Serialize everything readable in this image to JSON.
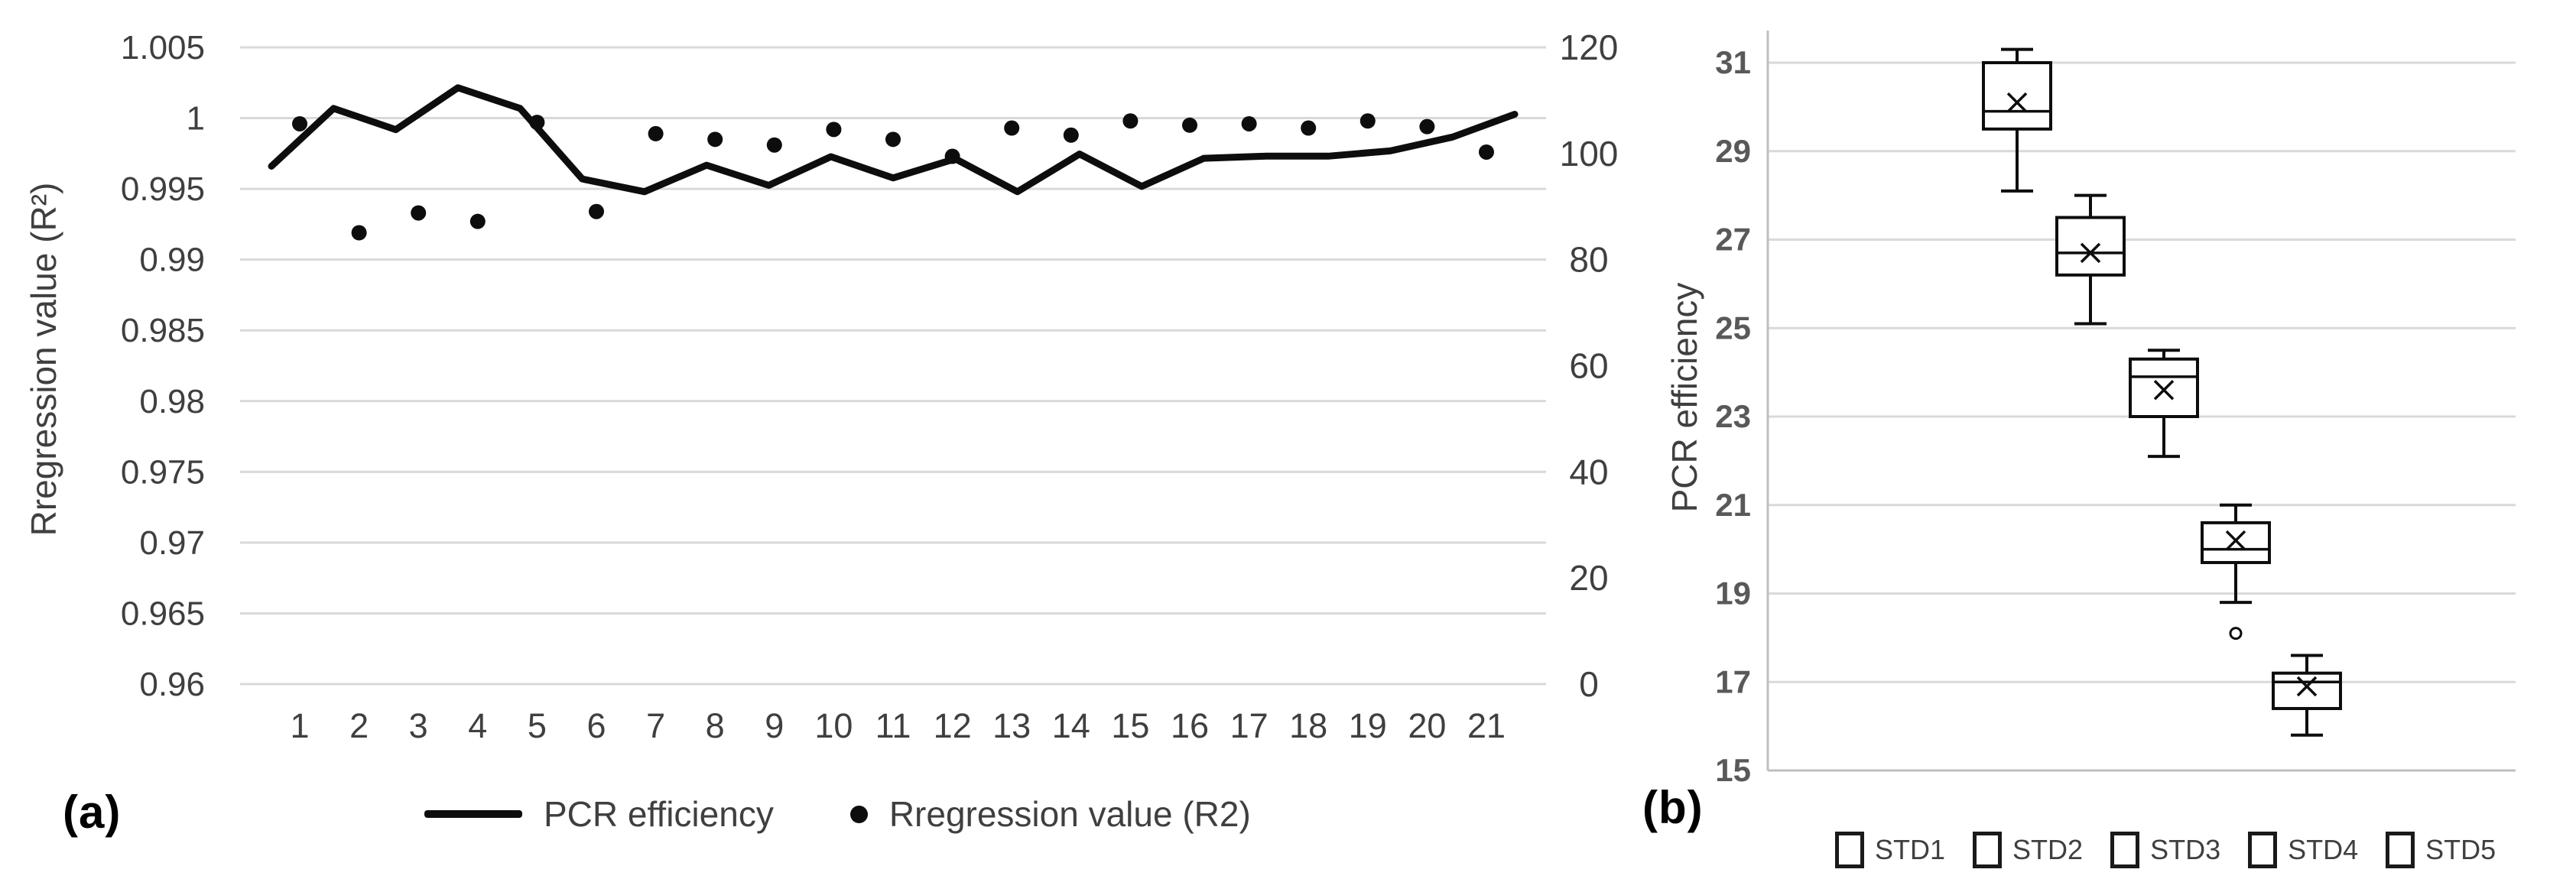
{
  "colors": {
    "series": "#0d0d0d",
    "grid": "#d9d9d9",
    "axis_line": "#bfbfbf",
    "tick_text": "#3f3f3f",
    "b_tick_text": "#595959",
    "legend_text": "#3f3f3f",
    "background": "#ffffff"
  },
  "chart_data": [
    {
      "id": "a",
      "type": "line",
      "panel_label": "(a)",
      "categories": [
        1,
        2,
        3,
        4,
        5,
        6,
        7,
        8,
        9,
        10,
        11,
        12,
        13,
        14,
        15,
        16,
        17,
        18,
        19,
        20,
        21
      ],
      "x_axis": {
        "tick_labels": [
          "1",
          "2",
          "3",
          "4",
          "5",
          "6",
          "7",
          "8",
          "9",
          "10",
          "11",
          "12",
          "13",
          "14",
          "15",
          "16",
          "17",
          "18",
          "19",
          "20",
          "21"
        ]
      },
      "left_axis": {
        "title": "Rregression value (R²)",
        "min": 0.96,
        "max": 1.005,
        "tick_labels": [
          "1.005",
          "1",
          "0.995",
          "0.99",
          "0.985",
          "0.98",
          "0.975",
          "0.97",
          "0.965",
          "0.96"
        ],
        "tick_values": [
          1.005,
          1.0,
          0.995,
          0.99,
          0.985,
          0.98,
          0.975,
          0.97,
          0.965,
          0.96
        ]
      },
      "right_axis": {
        "min": 0,
        "max": 120,
        "tick_labels": [
          "120",
          "100",
          "80",
          "60",
          "40",
          "20",
          "0"
        ],
        "tick_values": [
          120,
          100,
          80,
          60,
          40,
          20,
          0
        ]
      },
      "series": [
        {
          "name": "PCR efficiency",
          "type": "line",
          "axis": "right",
          "values": [
            97.6,
            108.5,
            104.5,
            112.4,
            108.5,
            95.2,
            92.8,
            97.8,
            94.0,
            99.4,
            95.4,
            99.0,
            92.8,
            99.9,
            93.8,
            99.1,
            99.5,
            99.5,
            100.5,
            103.1,
            107.4
          ]
        },
        {
          "name": "Rregression value (R2)",
          "type": "scatter",
          "axis": "left",
          "values": [
            0.9996,
            0.9919,
            0.9933,
            0.9927,
            0.9997,
            0.9934,
            0.9989,
            0.9985,
            0.9981,
            0.9992,
            0.9985,
            0.9973,
            0.9993,
            0.9988,
            0.9998,
            0.9995,
            0.9996,
            0.9993,
            0.9998,
            0.9994,
            0.9976
          ]
        }
      ],
      "legend": {
        "position": "bottom",
        "entries": [
          "PCR efficiency",
          "Rregression value (R2)"
        ]
      },
      "grid": "horizontal"
    },
    {
      "id": "b",
      "type": "boxplot",
      "panel_label": "(b)",
      "ylabel": "PCR efficiency",
      "y_axis": {
        "min": 15,
        "max": 31,
        "tick_labels": [
          "31",
          "29",
          "27",
          "25",
          "23",
          "21",
          "19",
          "17",
          "15"
        ],
        "tick_values": [
          31,
          29,
          27,
          25,
          23,
          21,
          19,
          17,
          15
        ]
      },
      "categories": [
        "STD1",
        "STD2",
        "STD3",
        "STD4",
        "STD5"
      ],
      "boxes": [
        {
          "name": "STD1",
          "whisker_low": 28.1,
          "q1": 29.5,
          "median": 29.9,
          "q3": 31.0,
          "whisker_high": 31.3,
          "mean": 30.1,
          "outliers": []
        },
        {
          "name": "STD2",
          "whisker_low": 25.1,
          "q1": 26.2,
          "median": 26.7,
          "q3": 27.5,
          "whisker_high": 28.0,
          "mean": 26.7,
          "outliers": []
        },
        {
          "name": "STD3",
          "whisker_low": 22.1,
          "q1": 23.0,
          "median": 23.9,
          "q3": 24.3,
          "whisker_high": 24.5,
          "mean": 23.6,
          "outliers": []
        },
        {
          "name": "STD4",
          "whisker_low": 18.8,
          "q1": 19.7,
          "median": 20.0,
          "q3": 20.6,
          "whisker_high": 21.0,
          "mean": 20.2,
          "outliers": [
            18.1
          ]
        },
        {
          "name": "STD5",
          "whisker_low": 15.8,
          "q1": 16.4,
          "median": 17.0,
          "q3": 17.2,
          "whisker_high": 17.6,
          "mean": 16.9,
          "outliers": []
        }
      ],
      "legend": {
        "position": "bottom",
        "entries": [
          "STD1",
          "STD2",
          "STD3",
          "STD4",
          "STD5"
        ]
      },
      "grid": "horizontal"
    }
  ]
}
